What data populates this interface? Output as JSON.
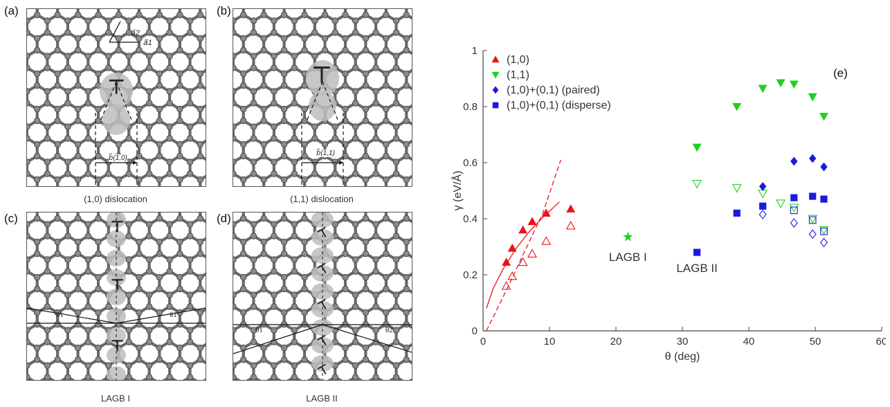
{
  "panels": [
    {
      "tag": "(a)",
      "caption": "(1,0) dislocation",
      "vec_a2": "a⃗2",
      "vec_a1": "a⃗1",
      "burgers": "b⃗(1,0)"
    },
    {
      "tag": "(b)",
      "caption": "(1,1) dislocation",
      "burgers": "b⃗(1,1)"
    },
    {
      "tag": "(c)",
      "caption": "LAGB I",
      "theta_left": "θ1",
      "theta_right": "θ1"
    },
    {
      "tag": "(d)",
      "caption": "LAGB II",
      "theta_left": "θ1",
      "theta_right": "θ2"
    }
  ],
  "dislocation_symbol": "⊤",
  "chart_data": {
    "type": "scatter",
    "panel_tag": "(e)",
    "xlabel": "θ (deg)",
    "ylabel": "γ (eV/Å)",
    "xlim": [
      0,
      60
    ],
    "ylim": [
      0,
      1
    ],
    "x_ticks": [
      "0",
      "10",
      "20",
      "30",
      "40",
      "50",
      "60"
    ],
    "y_ticks": [
      "0",
      "0.2",
      "0.4",
      "0.6",
      "0.8",
      "1"
    ],
    "legend_position": "top-left",
    "annotations": [
      {
        "text": "LAGB I",
        "x": 21.8,
        "y": 0.25
      },
      {
        "text": "LAGB II",
        "x": 32.2,
        "y": 0.21
      }
    ],
    "series": [
      {
        "name": "(1,0)",
        "marker": "triangle-up",
        "filled": true,
        "color": "#e8141a",
        "points": [
          [
            3.5,
            0.245
          ],
          [
            4.4,
            0.295
          ],
          [
            6.0,
            0.36
          ],
          [
            7.4,
            0.39
          ],
          [
            9.5,
            0.42
          ],
          [
            13.2,
            0.435
          ]
        ]
      },
      {
        "name": "",
        "marker": "triangle-up",
        "filled": false,
        "color": "#e8141a",
        "points": [
          [
            3.5,
            0.16
          ],
          [
            4.4,
            0.195
          ],
          [
            6.0,
            0.245
          ],
          [
            7.4,
            0.275
          ],
          [
            9.5,
            0.32
          ],
          [
            13.2,
            0.375
          ]
        ]
      },
      {
        "name": "(1,1)",
        "marker": "triangle-down",
        "filled": true,
        "color": "#1fd11f",
        "points": [
          [
            32.2,
            0.655
          ],
          [
            38.2,
            0.8
          ],
          [
            42.1,
            0.865
          ],
          [
            44.8,
            0.885
          ],
          [
            46.8,
            0.88
          ],
          [
            49.6,
            0.835
          ],
          [
            51.3,
            0.765
          ]
        ]
      },
      {
        "name": "",
        "marker": "triangle-down",
        "filled": false,
        "color": "#1fd11f",
        "points": [
          [
            32.2,
            0.525
          ],
          [
            38.2,
            0.51
          ],
          [
            42.1,
            0.49
          ],
          [
            44.8,
            0.455
          ],
          [
            46.8,
            0.44
          ],
          [
            49.6,
            0.4
          ],
          [
            51.3,
            0.36
          ]
        ]
      },
      {
        "name": "(1,0)+(0,1) (paired)",
        "marker": "diamond",
        "filled": true,
        "color": "#1a1ae0",
        "points": [
          [
            42.1,
            0.515
          ],
          [
            46.8,
            0.605
          ],
          [
            49.6,
            0.615
          ],
          [
            51.3,
            0.585
          ]
        ]
      },
      {
        "name": "",
        "marker": "diamond",
        "filled": false,
        "color": "#1a1ae0",
        "points": [
          [
            42.1,
            0.415
          ],
          [
            46.8,
            0.385
          ],
          [
            49.6,
            0.345
          ],
          [
            51.3,
            0.315
          ]
        ]
      },
      {
        "name": "(1,0)+(0,1) (disperse)",
        "marker": "square",
        "filled": true,
        "color": "#1a1ae0",
        "points": [
          [
            32.2,
            0.28
          ],
          [
            38.2,
            0.42
          ],
          [
            42.1,
            0.445
          ],
          [
            46.8,
            0.475
          ],
          [
            49.6,
            0.48
          ],
          [
            51.3,
            0.47
          ]
        ]
      },
      {
        "name": "",
        "marker": "square",
        "filled": false,
        "color": "#1a1ae0",
        "points": [
          [
            46.8,
            0.43
          ],
          [
            49.6,
            0.395
          ],
          [
            51.3,
            0.355
          ]
        ]
      },
      {
        "name": "",
        "marker": "star",
        "filled": true,
        "color": "#1fd11f",
        "points": [
          [
            21.8,
            0.335
          ]
        ]
      }
    ],
    "fit_curves": [
      {
        "style": "solid",
        "color": "#e8141a",
        "points": [
          [
            0.5,
            0.08
          ],
          [
            1.5,
            0.15
          ],
          [
            3,
            0.22
          ],
          [
            5,
            0.295
          ],
          [
            7,
            0.355
          ],
          [
            9,
            0.405
          ],
          [
            11.5,
            0.46
          ]
        ]
      },
      {
        "style": "dashed",
        "color": "#e8141a",
        "points": [
          [
            0.5,
            0.0
          ],
          [
            3,
            0.12
          ],
          [
            6,
            0.27
          ],
          [
            9,
            0.42
          ],
          [
            11.7,
            0.61
          ]
        ]
      }
    ]
  }
}
